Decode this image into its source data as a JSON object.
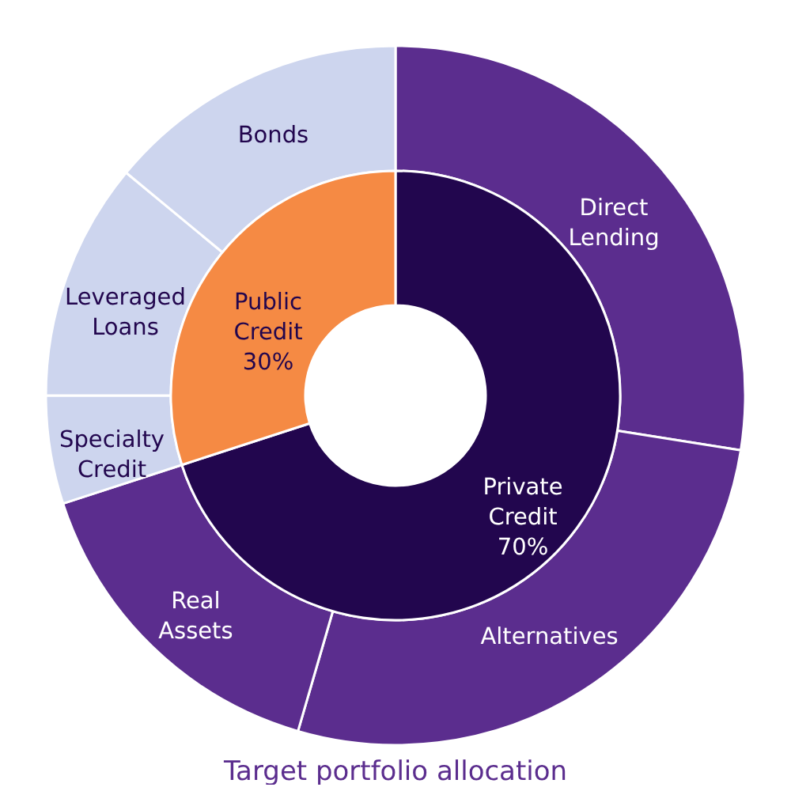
{
  "chart_data": [
    {
      "type": "donut",
      "categories": [
        "Private Credit",
        "Public Credit"
      ],
      "values": [
        70,
        30
      ],
      "colors": [
        "#22064e",
        "#f58a44"
      ],
      "value_labels": [
        "70%",
        "30%"
      ]
    },
    {
      "type": "donut",
      "title": "Target portfolio allocation",
      "categories": [
        "Direct Lending",
        "Alternatives",
        "Real Assets",
        "Specialty Credit",
        "Leveraged Loans",
        "Bonds"
      ],
      "values": [
        27.5,
        27,
        15.5,
        5,
        11,
        14
      ],
      "colors": [
        "#5b2d8e",
        "#5b2d8e",
        "#5b2d8e",
        "#cdd5ee",
        "#cdd5ee",
        "#cdd5ee"
      ]
    }
  ]
}
